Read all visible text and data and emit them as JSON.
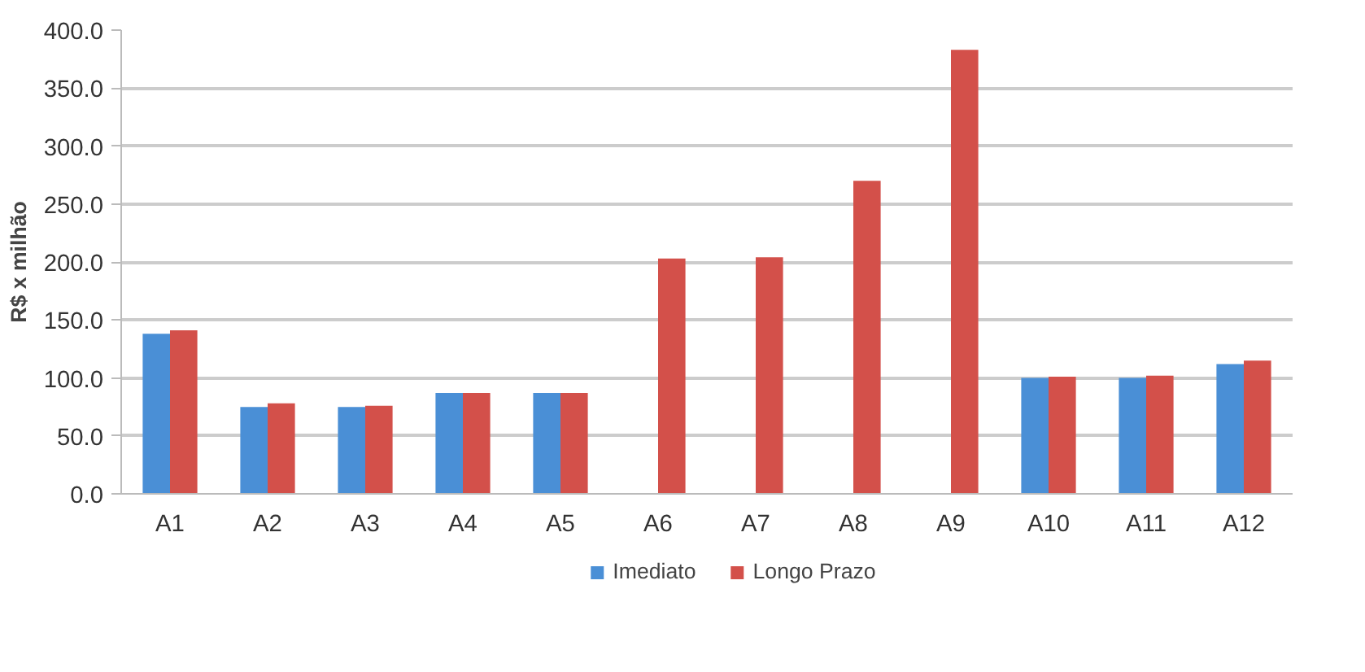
{
  "chart_data": {
    "type": "bar",
    "ylabel": "R$ x milhão",
    "categories": [
      "A1",
      "A2",
      "A3",
      "A4",
      "A5",
      "A6",
      "A7",
      "A8",
      "A9",
      "A10",
      "A11",
      "A12"
    ],
    "series": [
      {
        "name": "Imediato",
        "color": "#4a8fd6",
        "values": [
          138,
          75,
          75,
          87,
          87,
          null,
          null,
          null,
          null,
          100,
          100,
          112
        ]
      },
      {
        "name": "Longo Prazo",
        "color": "#d3504a",
        "values": [
          141,
          78,
          76,
          87,
          87,
          203,
          204,
          270,
          383,
          101,
          102,
          115
        ]
      }
    ],
    "ylim": [
      0,
      400
    ],
    "yticks": [
      {
        "value": 0,
        "label": "0.0"
      },
      {
        "value": 50,
        "label": "50.0"
      },
      {
        "value": 100,
        "label": "100.0"
      },
      {
        "value": 150,
        "label": "150.0"
      },
      {
        "value": 200,
        "label": "200.0"
      },
      {
        "value": 250,
        "label": "250.0"
      },
      {
        "value": 300,
        "label": "300.0"
      },
      {
        "value": 350,
        "label": "350.0"
      },
      {
        "value": 400,
        "label": "400.0"
      }
    ],
    "grid": "y",
    "legend": "bottom"
  }
}
